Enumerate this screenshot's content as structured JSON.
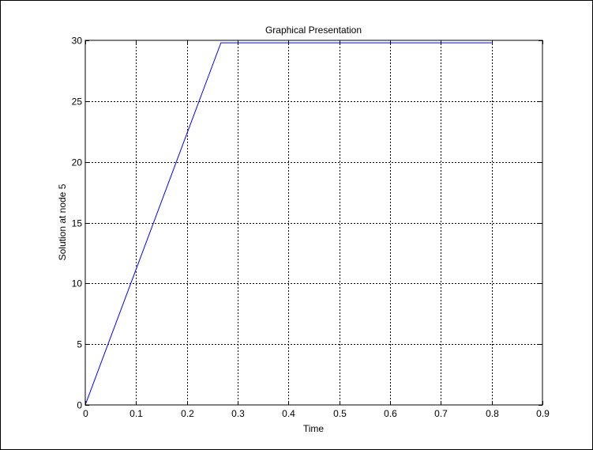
{
  "chart_data": {
    "type": "line",
    "title": "Graphical Presentation",
    "xlabel": "Time",
    "ylabel": "Solution at node 5",
    "xlim": [
      0,
      0.9
    ],
    "ylim": [
      0,
      30
    ],
    "xticks": [
      0,
      0.1,
      0.2,
      0.3,
      0.4,
      0.5,
      0.6,
      0.7,
      0.8,
      0.9
    ],
    "yticks": [
      0,
      5,
      10,
      15,
      20,
      25,
      30
    ],
    "xtick_labels": [
      "0",
      "0.1",
      "0.2",
      "0.3",
      "0.4",
      "0.5",
      "0.6",
      "0.7",
      "0.8",
      "0.9"
    ],
    "ytick_labels": [
      "0",
      "5",
      "10",
      "15",
      "20",
      "25",
      "30"
    ],
    "grid": true,
    "series": [
      {
        "color": "#0000ff",
        "x": [
          0,
          0.267,
          0.8
        ],
        "y": [
          0,
          29.8,
          29.8
        ]
      }
    ]
  }
}
